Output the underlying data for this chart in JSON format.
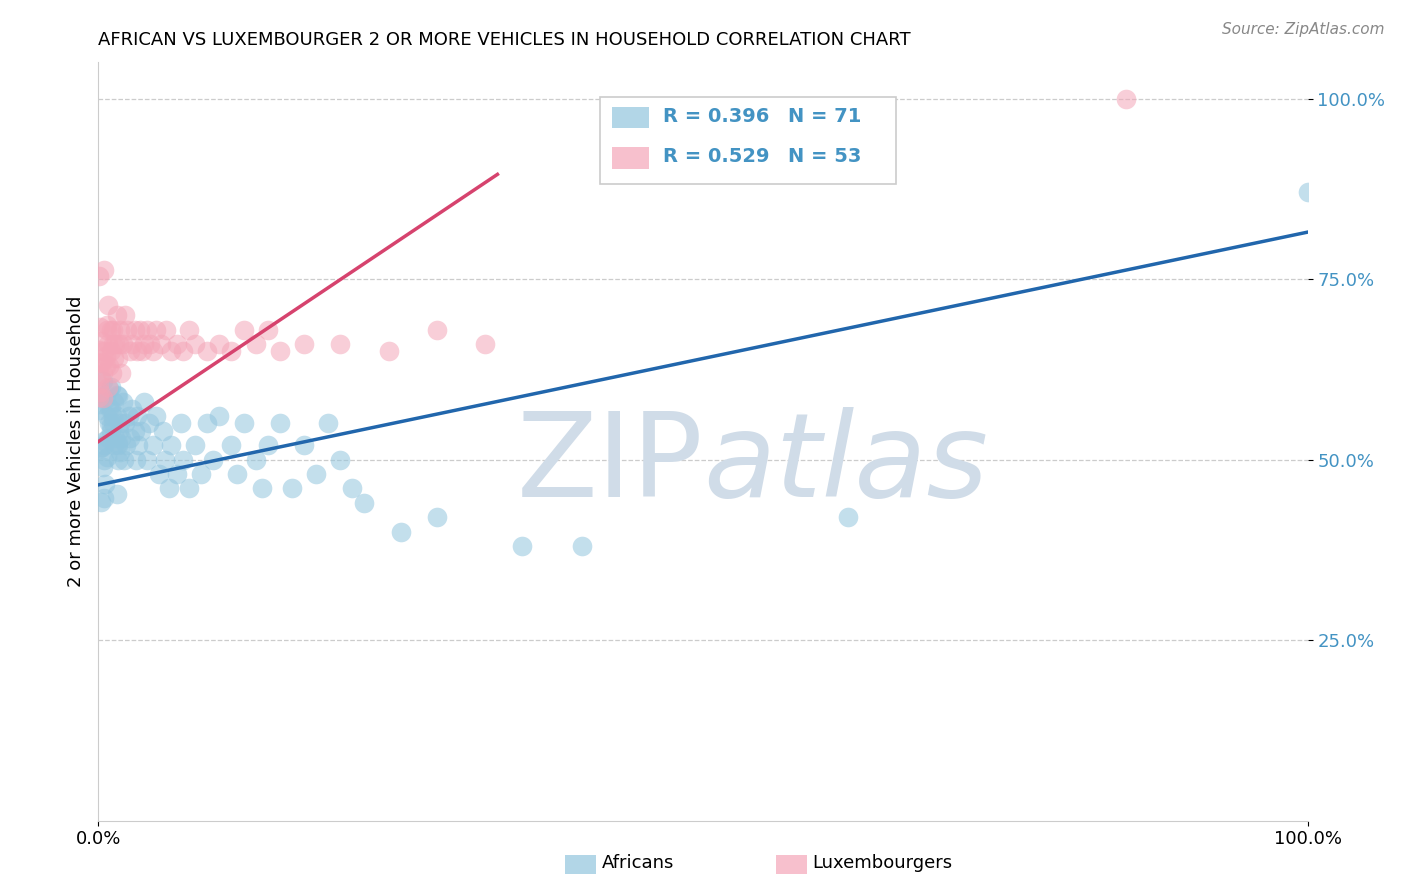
{
  "title": "AFRICAN VS LUXEMBOURGER 2 OR MORE VEHICLES IN HOUSEHOLD CORRELATION CHART",
  "source": "Source: ZipAtlas.com",
  "ylabel": "2 or more Vehicles in Household",
  "legend_africans": "Africans",
  "legend_luxembourgers": "Luxembourgers",
  "r_african": "R = 0.396",
  "n_african": "N = 71",
  "r_luxembourger": "R = 0.529",
  "n_luxembourger": "N = 53",
  "blue_dot_color": "#92c5de",
  "pink_dot_color": "#f4a6b8",
  "blue_line_color": "#2166ac",
  "pink_line_color": "#d6436e",
  "tick_color": "#4393c3",
  "watermark_color": "#d0dce8",
  "african_x": [
    0.005,
    0.005,
    0.007,
    0.008,
    0.009,
    0.01,
    0.01,
    0.01,
    0.012,
    0.013,
    0.013,
    0.014,
    0.015,
    0.015,
    0.016,
    0.016,
    0.017,
    0.018,
    0.018,
    0.019,
    0.02,
    0.021,
    0.022,
    0.023,
    0.025,
    0.026,
    0.028,
    0.03,
    0.031,
    0.032,
    0.033,
    0.035,
    0.038,
    0.04,
    0.042,
    0.045,
    0.048,
    0.05,
    0.053,
    0.055,
    0.058,
    0.06,
    0.065,
    0.068,
    0.07,
    0.075,
    0.08,
    0.085,
    0.09,
    0.095,
    0.1,
    0.11,
    0.115,
    0.12,
    0.13,
    0.135,
    0.14,
    0.15,
    0.16,
    0.17,
    0.18,
    0.19,
    0.2,
    0.21,
    0.22,
    0.25,
    0.28,
    0.35,
    0.4,
    0.62,
    1.0
  ],
  "african_y": [
    0.52,
    0.5,
    0.56,
    0.53,
    0.55,
    0.54,
    0.57,
    0.6,
    0.55,
    0.52,
    0.58,
    0.53,
    0.56,
    0.59,
    0.52,
    0.5,
    0.54,
    0.51,
    0.55,
    0.53,
    0.58,
    0.5,
    0.55,
    0.52,
    0.56,
    0.53,
    0.57,
    0.54,
    0.5,
    0.56,
    0.52,
    0.54,
    0.58,
    0.5,
    0.55,
    0.52,
    0.56,
    0.48,
    0.54,
    0.5,
    0.46,
    0.52,
    0.48,
    0.55,
    0.5,
    0.46,
    0.52,
    0.48,
    0.55,
    0.5,
    0.56,
    0.52,
    0.48,
    0.55,
    0.5,
    0.46,
    0.52,
    0.55,
    0.46,
    0.52,
    0.48,
    0.55,
    0.5,
    0.46,
    0.44,
    0.4,
    0.42,
    0.38,
    0.38,
    0.42,
    0.87
  ],
  "luxembourger_x": [
    0.004,
    0.005,
    0.006,
    0.007,
    0.008,
    0.008,
    0.009,
    0.01,
    0.01,
    0.011,
    0.012,
    0.012,
    0.013,
    0.014,
    0.015,
    0.016,
    0.017,
    0.018,
    0.019,
    0.02,
    0.022,
    0.024,
    0.026,
    0.028,
    0.03,
    0.032,
    0.034,
    0.036,
    0.038,
    0.04,
    0.043,
    0.045,
    0.048,
    0.052,
    0.056,
    0.06,
    0.065,
    0.07,
    0.075,
    0.08,
    0.09,
    0.1,
    0.11,
    0.12,
    0.13,
    0.14,
    0.15,
    0.17,
    0.2,
    0.24,
    0.28,
    0.32,
    0.85
  ],
  "luxembourger_y": [
    0.62,
    0.65,
    0.63,
    0.68,
    0.6,
    0.66,
    0.63,
    0.68,
    0.65,
    0.62,
    0.66,
    0.68,
    0.64,
    0.66,
    0.7,
    0.64,
    0.66,
    0.68,
    0.62,
    0.66,
    0.7,
    0.68,
    0.65,
    0.66,
    0.68,
    0.65,
    0.68,
    0.65,
    0.66,
    0.68,
    0.66,
    0.65,
    0.68,
    0.66,
    0.68,
    0.65,
    0.66,
    0.65,
    0.68,
    0.66,
    0.65,
    0.66,
    0.65,
    0.68,
    0.66,
    0.68,
    0.65,
    0.66,
    0.66,
    0.65,
    0.68,
    0.66,
    1.0
  ],
  "blue_line_x": [
    0.0,
    1.0
  ],
  "blue_line_y": [
    0.465,
    0.815
  ],
  "pink_line_x": [
    0.0,
    0.33
  ],
  "pink_line_y": [
    0.525,
    0.895
  ],
  "xlim": [
    0.0,
    1.0
  ],
  "ylim": [
    0.0,
    1.05
  ],
  "ytick_vals": [
    0.25,
    0.5,
    0.75,
    1.0
  ],
  "ytick_labels": [
    "25.0%",
    "50.0%",
    "75.0%",
    "100.0%"
  ],
  "xtick_vals": [
    0.0,
    1.0
  ],
  "xtick_labels": [
    "0.0%",
    "100.0%"
  ]
}
